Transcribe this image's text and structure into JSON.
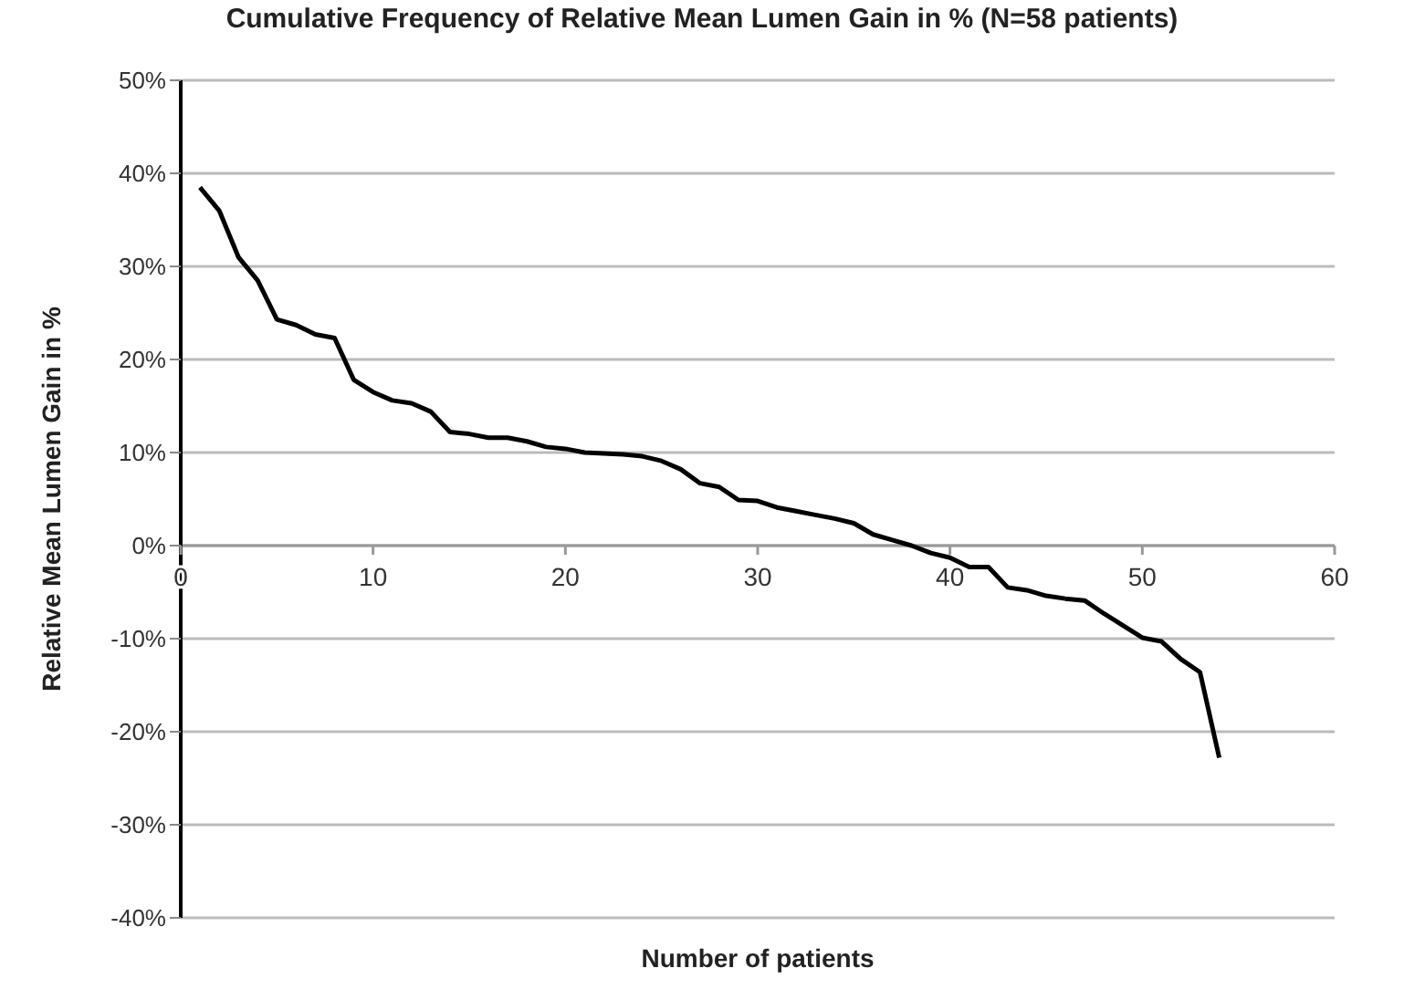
{
  "chart_data": {
    "type": "line",
    "title": "Cumulative Frequency of Relative Mean Lumen Gain in % (N=58 patients)",
    "xlabel": "Number of patients",
    "ylabel": "Relative  Mean Lumen Gain in %",
    "x": [
      1,
      2,
      3,
      4,
      5,
      6,
      7,
      8,
      9,
      10,
      11,
      12,
      13,
      14,
      15,
      16,
      17,
      18,
      19,
      20,
      21,
      22,
      23,
      24,
      25,
      26,
      27,
      28,
      29,
      30,
      31,
      32,
      33,
      34,
      35,
      36,
      37,
      38,
      39,
      40,
      41,
      42,
      43,
      44,
      45,
      46,
      47,
      48,
      49,
      50,
      51,
      52,
      53,
      54
    ],
    "series": [
      {
        "color": "#000000",
        "values": [
          38.5,
          36,
          31,
          28.5,
          24.3,
          23.7,
          22.7,
          22.3,
          17.8,
          16.5,
          15.6,
          15.3,
          14.4,
          12.2,
          12,
          11.6,
          11.6,
          11.2,
          10.6,
          10.4,
          10,
          9.9,
          9.8,
          9.6,
          9.1,
          8.2,
          6.7,
          6.3,
          4.9,
          4.8,
          4.1,
          3.7,
          3.3,
          2.9,
          2.4,
          1.2,
          0.6,
          0,
          -0.8,
          -1.3,
          -2.3,
          -2.3,
          -4.5,
          -4.8,
          -5.4,
          -5.7,
          -5.9,
          -7.3,
          -8.6,
          -9.9,
          -10.3,
          -12.2,
          -13.6,
          -22.8
        ]
      }
    ],
    "xlim": [
      0,
      60
    ],
    "xticks": [
      0,
      10,
      20,
      30,
      40,
      50,
      60
    ],
    "ylim": [
      -40,
      50
    ],
    "yticks": [
      {
        "value": -40,
        "label": "-40%"
      },
      {
        "value": -30,
        "label": "-30%"
      },
      {
        "value": -20,
        "label": "-20%"
      },
      {
        "value": -10,
        "label": "-10%"
      },
      {
        "value": 0,
        "label": "0%"
      },
      {
        "value": 10,
        "label": "10%"
      },
      {
        "value": 20,
        "label": "20%"
      },
      {
        "value": 30,
        "label": "30%"
      },
      {
        "value": 40,
        "label": "40%"
      },
      {
        "value": 50,
        "label": "50%"
      }
    ],
    "grid": "y",
    "marker": "none",
    "line_style": "solid",
    "legend": false
  }
}
